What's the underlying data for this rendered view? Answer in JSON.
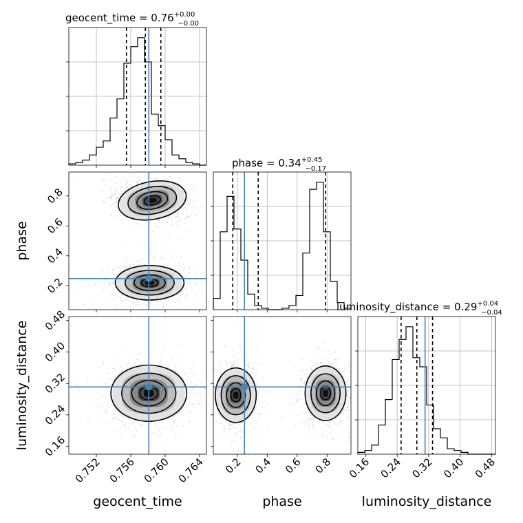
{
  "chart_data": {
    "type": "corner",
    "parameters": [
      "geocent_time",
      "phase",
      "luminosity_distance"
    ],
    "titles": [
      {
        "param": "geocent_time",
        "label": "geocent_time = 0.76",
        "plus": "+0.00",
        "minus": "−0.00"
      },
      {
        "param": "phase",
        "label": "phase = 0.34",
        "plus": "+0.45",
        "minus": "−0.17"
      },
      {
        "param": "luminosity_distance",
        "label": "luminosity_distance = 0.29",
        "plus": "+0.04",
        "minus": "−0.04"
      }
    ],
    "ranges": {
      "geocent_time": [
        0.7488,
        0.7648
      ],
      "phase": [
        0.04,
        0.96
      ],
      "luminosity_distance": [
        0.14,
        0.49
      ]
    },
    "ticks": {
      "geocent_time": [
        0.752,
        0.756,
        0.76,
        0.764
      ],
      "phase": [
        0.2,
        0.4,
        0.6,
        0.8
      ],
      "luminosity_distance": [
        0.16,
        0.24,
        0.32,
        0.4,
        0.48
      ]
    },
    "tick_labels": {
      "geocent_time": [
        "0.752",
        "0.756",
        "0.760",
        "0.764"
      ],
      "phase": [
        "0.2",
        "0.4",
        "0.6",
        "0.8"
      ],
      "luminosity_distance": [
        "0.16",
        "0.24",
        "0.32",
        "0.40",
        "0.48"
      ]
    },
    "truths": {
      "geocent_time": 0.7581,
      "phase": 0.248,
      "luminosity_distance": 0.311
    },
    "quantiles": {
      "geocent_time": [
        0.7555,
        0.7577,
        0.7595
      ],
      "phase": [
        0.17,
        0.34,
        0.79
      ],
      "luminosity_distance": [
        0.25,
        0.29,
        0.33
      ]
    },
    "histograms": {
      "geocent_time": {
        "edges_start": 0.7488,
        "bin_width": 0.0008,
        "counts": [
          1,
          2,
          4,
          8,
          14,
          19,
          37,
          52,
          80,
          93,
          100,
          81,
          40,
          31,
          20,
          8,
          5,
          2,
          1,
          0
        ]
      },
      "phase": {
        "edges_start": 0.04,
        "bin_width": 0.046,
        "counts": [
          8,
          55,
          80,
          57,
          35,
          11,
          3,
          1,
          0,
          0,
          1,
          3,
          10,
          40,
          85,
          90,
          55,
          20,
          5,
          1
        ]
      },
      "luminosity_distance": {
        "edges_start": 0.14,
        "bin_width": 0.0175,
        "counts": [
          1,
          2,
          5,
          16,
          30,
          52,
          63,
          70,
          53,
          48,
          27,
          14,
          9,
          3,
          2,
          1,
          0,
          0,
          0,
          0
        ]
      }
    },
    "density_2d": [
      {
        "x": "geocent_time",
        "y": "phase",
        "modes": [
          {
            "cx": 0.7585,
            "cy": 0.77,
            "sx": 0.0019,
            "sy": 0.06,
            "rot": -0.3
          },
          {
            "cx": 0.7582,
            "cy": 0.22,
            "sx": 0.0019,
            "sy": 0.055,
            "rot": 0.0
          }
        ]
      },
      {
        "x": "geocent_time",
        "y": "luminosity_distance",
        "modes": [
          {
            "cx": 0.7581,
            "cy": 0.295,
            "sx": 0.0021,
            "sy": 0.034,
            "rot": 0.0
          }
        ]
      },
      {
        "x": "phase",
        "y": "luminosity_distance",
        "modes": [
          {
            "cx": 0.19,
            "cy": 0.29,
            "sx": 0.065,
            "sy": 0.033,
            "rot": 0.0
          },
          {
            "cx": 0.79,
            "cy": 0.295,
            "sx": 0.065,
            "sy": 0.033,
            "rot": 0.0
          }
        ]
      }
    ]
  }
}
